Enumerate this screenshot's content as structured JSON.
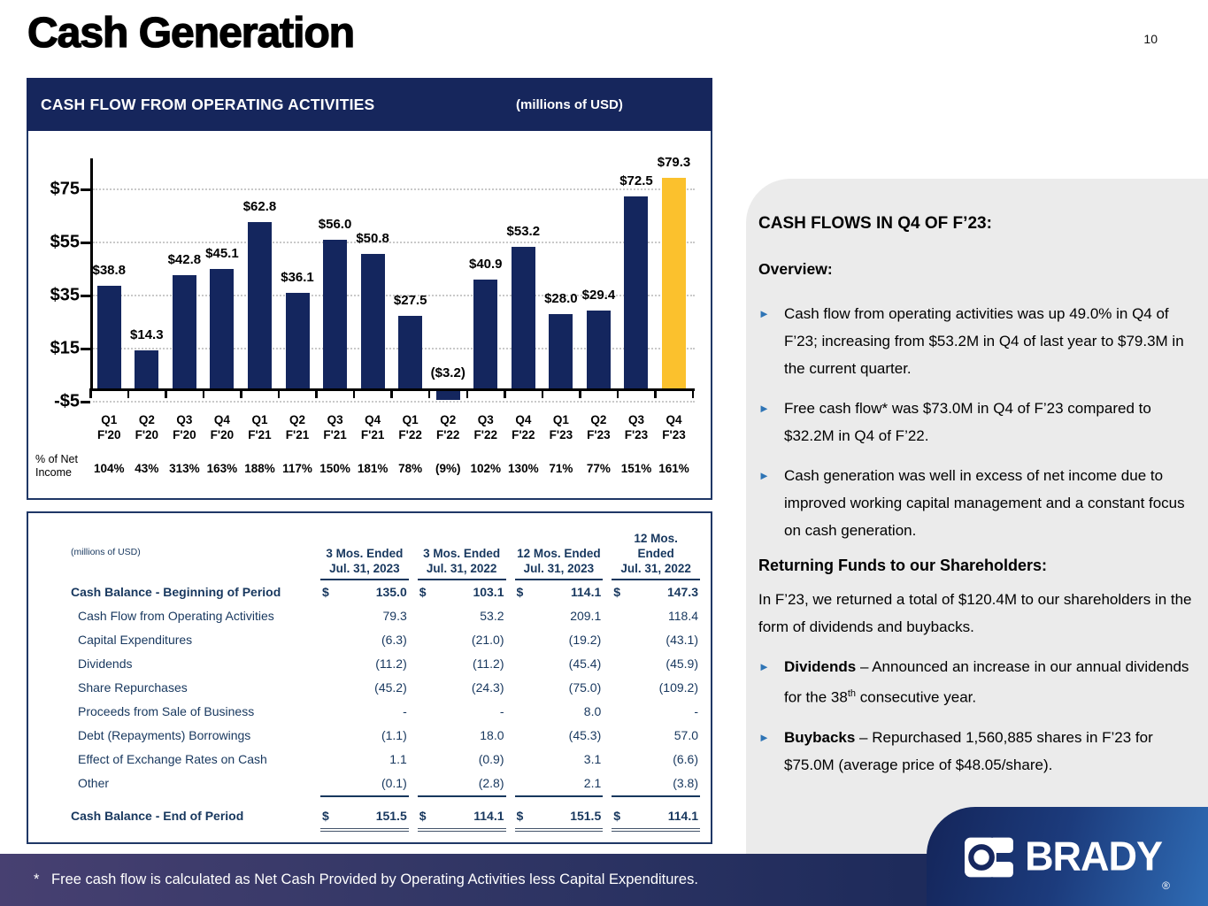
{
  "slide": {
    "title": "Cash Generation",
    "page_number": "10"
  },
  "chart_panel": {
    "header": "CASH FLOW FROM OPERATING ACTIVITIES",
    "unit_label": "(millions of USD)",
    "pct_row_label": "% of Net Income"
  },
  "chart_data": {
    "type": "bar",
    "title": "CASH FLOW FROM OPERATING ACTIVITIES",
    "unit": "millions of USD",
    "categories": [
      "Q1 F'20",
      "Q2 F'20",
      "Q3 F'20",
      "Q4 F'20",
      "Q1 F'21",
      "Q2 F'21",
      "Q3 F'21",
      "Q4 F'21",
      "Q1 F'22",
      "Q2 F'22",
      "Q3 F'22",
      "Q4 F'22",
      "Q1 F'23",
      "Q2 F'23",
      "Q3 F'23",
      "Q4 F'23"
    ],
    "values": [
      38.8,
      14.3,
      42.8,
      45.1,
      62.8,
      36.1,
      56.0,
      50.8,
      27.5,
      -3.2,
      40.9,
      53.2,
      28.0,
      29.4,
      72.5,
      79.3
    ],
    "value_labels": [
      "$38.8",
      "$14.3",
      "$42.8",
      "$45.1",
      "$62.8",
      "$36.1",
      "$56.0",
      "$50.8",
      "$27.5",
      "($3.2)",
      "$40.9",
      "$53.2",
      "$28.0",
      "$29.4",
      "$72.5",
      "$79.3"
    ],
    "pct_of_net_income": [
      "104%",
      "43%",
      "313%",
      "163%",
      "188%",
      "117%",
      "150%",
      "181%",
      "78%",
      "(9%)",
      "102%",
      "130%",
      "71%",
      "77%",
      "151%",
      "161%"
    ],
    "y_ticks": [
      {
        "v": 75,
        "label": "$75"
      },
      {
        "v": 55,
        "label": "$55"
      },
      {
        "v": 35,
        "label": "$35"
      },
      {
        "v": 15,
        "label": "$15"
      },
      {
        "v": -5,
        "label": "-$5"
      }
    ],
    "ylim": [
      -8,
      87
    ],
    "grid": "dotted-horizontal",
    "legend": "none",
    "bar_color": "#14265E",
    "highlight_color": "#FBC12D",
    "highlight_index": 15
  },
  "table": {
    "unit_label": "(millions of USD)",
    "col_headers": [
      [
        "3 Mos. Ended",
        "Jul. 31, 2023"
      ],
      [
        "3 Mos. Ended",
        "Jul. 31, 2022"
      ],
      [
        "12 Mos. Ended",
        "Jul. 31, 2023"
      ],
      [
        "12 Mos.",
        "Ended",
        "Jul. 31, 2022"
      ]
    ],
    "rows": [
      {
        "label": "Cash Balance - Beginning of Period",
        "bold": true,
        "dollar": true,
        "values": [
          "135.0",
          "103.1",
          "114.1",
          "147.3"
        ]
      },
      {
        "label": "Cash Flow from Operating Activities",
        "indent": true,
        "values": [
          "79.3",
          "53.2",
          "209.1",
          "118.4"
        ]
      },
      {
        "label": "Capital Expenditures",
        "indent": true,
        "values": [
          "(6.3)",
          "(21.0)",
          "(19.2)",
          "(43.1)"
        ]
      },
      {
        "label": "Dividends",
        "indent": true,
        "values": [
          "(11.2)",
          "(11.2)",
          "(45.4)",
          "(45.9)"
        ]
      },
      {
        "label": "Share Repurchases",
        "indent": true,
        "values": [
          "(45.2)",
          "(24.3)",
          "(75.0)",
          "(109.2)"
        ]
      },
      {
        "label": "Proceeds from Sale of Business",
        "indent": true,
        "values": [
          "-",
          "-",
          "8.0",
          "-"
        ]
      },
      {
        "label": "Debt (Repayments) Borrowings",
        "indent": true,
        "values": [
          "(1.1)",
          "18.0",
          "(45.3)",
          "57.0"
        ]
      },
      {
        "label": "Effect of Exchange Rates on Cash",
        "indent": true,
        "values": [
          "1.1",
          "(0.9)",
          "3.1",
          "(6.6)"
        ]
      },
      {
        "label": "Other",
        "indent": true,
        "underline": true,
        "values": [
          "(0.1)",
          "(2.8)",
          "2.1",
          "(3.8)"
        ]
      }
    ],
    "total_row": {
      "label": "Cash Balance - End of Period",
      "dollar": true,
      "values": [
        "151.5",
        "114.1",
        "151.5",
        "114.1"
      ]
    }
  },
  "sidebar": {
    "heading": "CASH FLOWS IN Q4 OF F’23:",
    "overview_label": "Overview:",
    "bullets": [
      "Cash flow from operating activities was up 49.0% in Q4 of F’23; increasing from $53.2M in Q4 of last year to $79.3M in the current quarter.",
      "Free cash flow* was $73.0M in Q4 of F’23 compared to $32.2M in Q4 of F’22.",
      "Cash generation was well in excess of net income due to improved working capital management and a constant focus on cash generation."
    ],
    "returning_heading": "Returning Funds to our Shareholders:",
    "returning_text": "In F’23, we returned a total of $120.4M to our shareholders in the form of dividends and buybacks.",
    "sub_bullets": [
      {
        "lead": "Dividends",
        "pre": " – Announced an increase in our annual dividends for the 38",
        "sup": "th",
        "post": " consecutive year."
      },
      {
        "lead": "Buybacks",
        "pre": " – Repurchased 1,560,885 shares in F’23 for $75.0M (average price of $48.05/share).",
        "sup": "",
        "post": ""
      }
    ]
  },
  "footnote": {
    "marker": "*",
    "text": "Free cash flow is calculated as Net Cash Provided by Operating Activities less Capital Expenditures."
  },
  "brand": {
    "name": "BRADY",
    "registered": "®"
  }
}
